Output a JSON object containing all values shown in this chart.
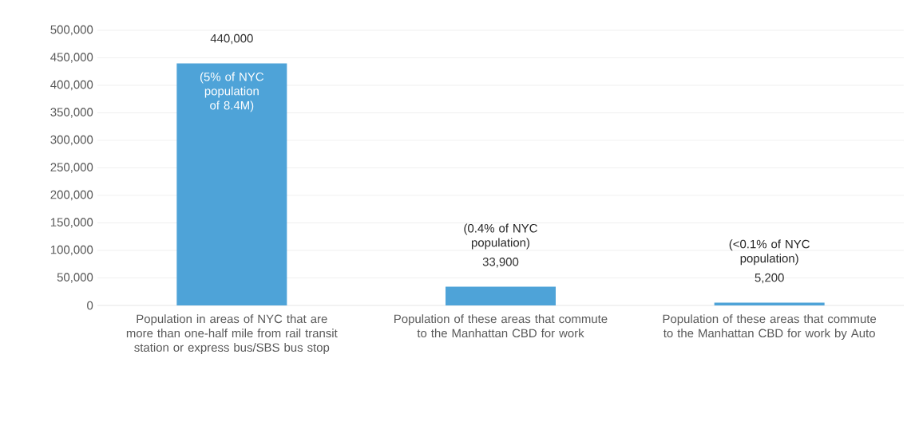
{
  "chart_data": {
    "type": "bar",
    "categories": [
      "Population in areas of NYC that are more than one-half mile from rail transit station or express bus/SBS bus stop",
      "Population of these areas that commute to the Manhattan CBD for work",
      "Population of these areas that commute to the Manhattan CBD for work by Auto"
    ],
    "values": [
      440000,
      33900,
      5200
    ],
    "value_labels": [
      "440,000",
      "33,900",
      "5,200"
    ],
    "color": "#4ea3d8",
    "ylim": [
      0,
      500000
    ],
    "yticks": [
      {
        "value": 0,
        "label": "0"
      },
      {
        "value": 50000,
        "label": "50,000"
      },
      {
        "value": 100000,
        "label": "100,000"
      },
      {
        "value": 150000,
        "label": "150,000"
      },
      {
        "value": 200000,
        "label": "200,000"
      },
      {
        "value": 250000,
        "label": "250,000"
      },
      {
        "value": 300000,
        "label": "300,000"
      },
      {
        "value": 350000,
        "label": "350,000"
      },
      {
        "value": 400000,
        "label": "400,000"
      },
      {
        "value": 450000,
        "label": "450,000"
      },
      {
        "value": 500000,
        "label": "500,000"
      }
    ],
    "grid": "y",
    "annotations": [
      "(5% of NYC population of 8.4M)",
      "(0.4% of NYC population)",
      "(<0.1% of NYC population)"
    ]
  }
}
